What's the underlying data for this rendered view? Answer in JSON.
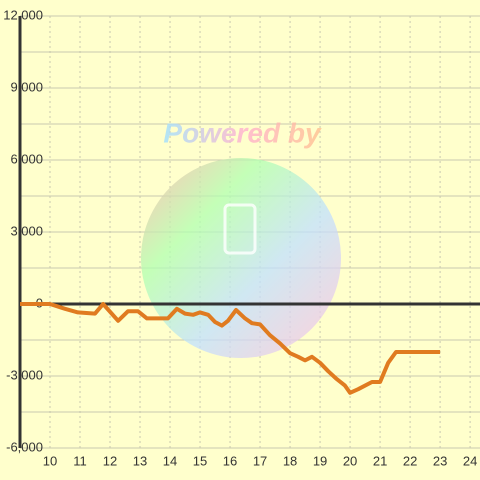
{
  "chart_data": {
    "type": "line",
    "watermark": "Powered by",
    "x": [
      9,
      10,
      10.5,
      10.93,
      11.5,
      11.77,
      12.27,
      12.6,
      12.93,
      13.23,
      13.67,
      13.93,
      14.23,
      14.5,
      14.77,
      15,
      15.27,
      15.5,
      15.73,
      15.93,
      16.2,
      16.5,
      16.73,
      17,
      17.33,
      17.67,
      18,
      18.27,
      18.5,
      18.73,
      19,
      19.27,
      19.53,
      19.83,
      20,
      20.27,
      20.73,
      21,
      21.27,
      21.53,
      22,
      23
    ],
    "series": [
      {
        "color": "#e07b20",
        "values": [
          0,
          0,
          -200,
          -350,
          -400,
          0,
          -700,
          -300,
          -300,
          -600,
          -600,
          -600,
          -200,
          -400,
          -450,
          -350,
          -450,
          -750,
          -900,
          -700,
          -250,
          -600,
          -800,
          -850,
          -1300,
          -1650,
          -2050,
          -2200,
          -2350,
          -2200,
          -2450,
          -2800,
          -3100,
          -3400,
          -3700,
          -3550,
          -3250,
          -3250,
          -2450,
          -2000,
          -2000,
          -2000
        ]
      }
    ],
    "xlim": [
      9,
      24.33
    ],
    "ylim": [
      -6000,
      12000
    ],
    "xticks": [
      10,
      11,
      12,
      13,
      14,
      15,
      16,
      17,
      18,
      19,
      20,
      21,
      22,
      23,
      24
    ],
    "yticks": [
      {
        "value": -6000,
        "label": "-6,000"
      },
      {
        "value": -3000,
        "label": "-3,000"
      },
      0,
      {
        "value": 3000,
        "label": "3,000"
      },
      {
        "value": 6000,
        "label": "6,000"
      },
      {
        "value": 9000,
        "label": "9,000"
      },
      {
        "value": 12000,
        "label": "12,000"
      }
    ],
    "grid": true
  }
}
